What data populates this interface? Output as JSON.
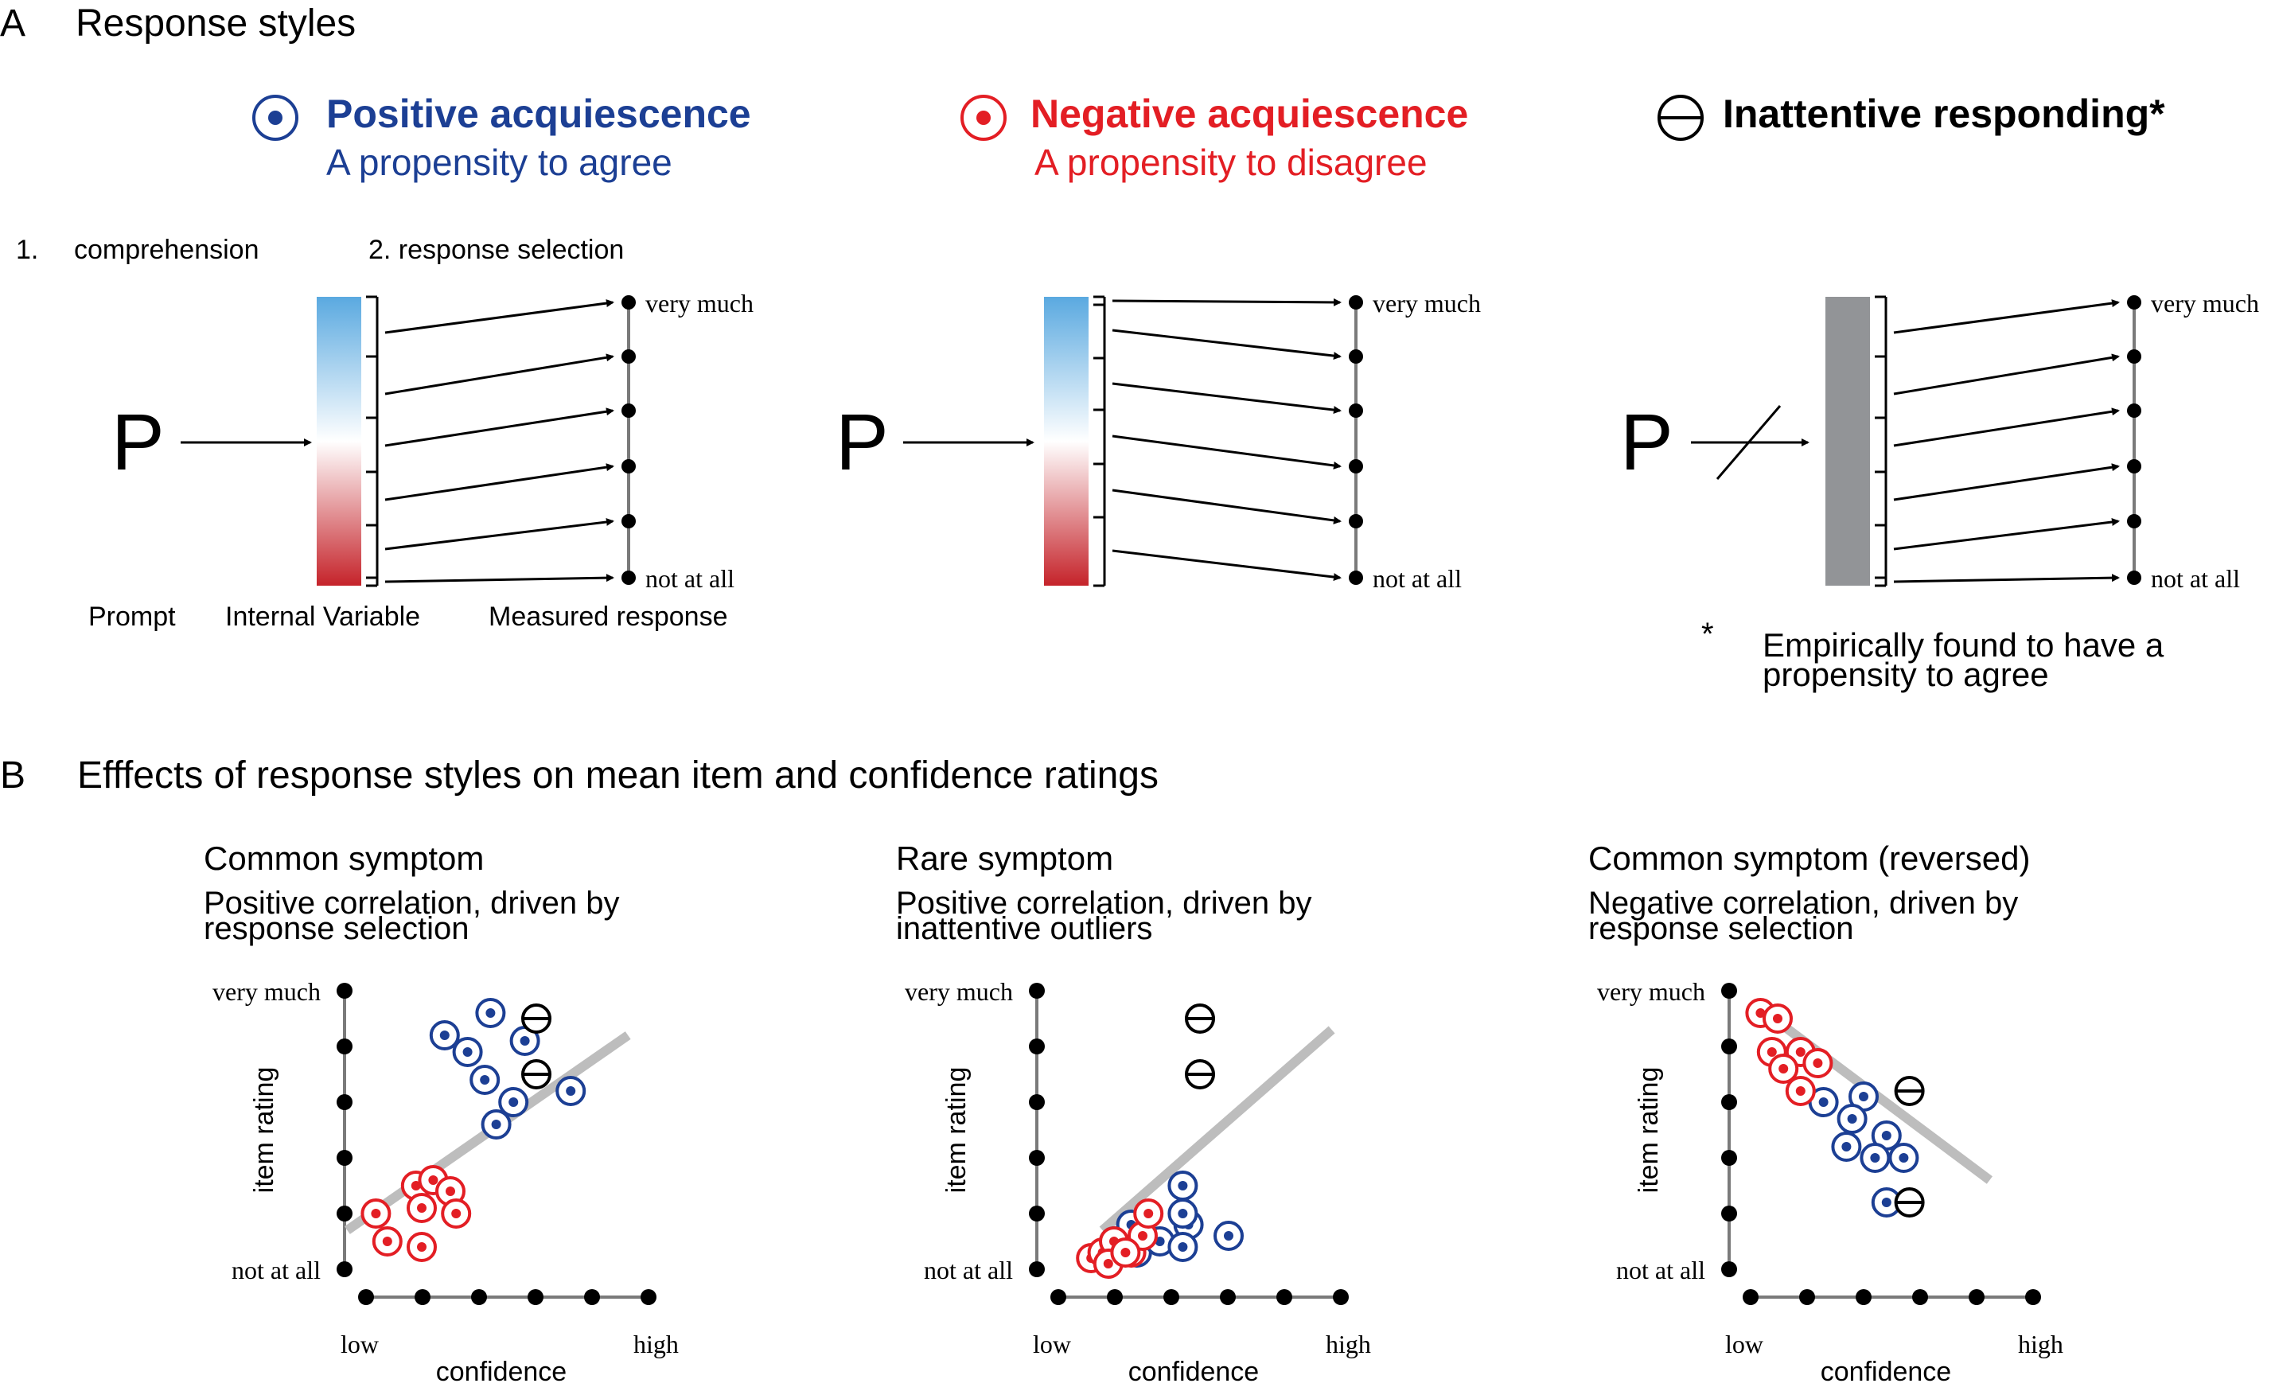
{
  "colors": {
    "positive": "#1c3f94",
    "negative": "#e31e24",
    "neutral": "#000000",
    "axis": "#7a7a7a",
    "fit": "#bdbdbd",
    "gray_bar": "#929497",
    "grad_top": "#5aa9e0",
    "grad_bottom": "#c5232a"
  },
  "panel_a": {
    "letter": "A",
    "title": "Response styles",
    "styles": [
      {
        "icon": "positive-dot-icon",
        "name": "Positive acquiescence",
        "desc": "A propensity to agree"
      },
      {
        "icon": "negative-dot-icon",
        "name": "Negative acquiescence",
        "desc": "A propensity to disagree"
      },
      {
        "icon": "inattentive-bar-icon",
        "name": "Inattentive responding*",
        "desc": ""
      }
    ],
    "step1": "1.",
    "step1_label": "comprehension",
    "step2_label": "2. response selection",
    "prompt_symbol": "P",
    "scale_top": "very much",
    "scale_bottom": "not at all",
    "label_prompt": "Prompt",
    "label_internal": "Internal Variable",
    "label_measured": "Measured response",
    "footnote_star": "*",
    "footnote_line1": "Empirically found to have a",
    "footnote_line2": "propensity to agree"
  },
  "panel_b": {
    "letter": "B",
    "title": "Efffects of response styles on mean item and confidence ratings",
    "ylabel": "item rating",
    "xlabel": "confidence",
    "x_low": "low",
    "x_high": "high",
    "y_top": "very much",
    "y_bottom": "not at all"
  },
  "chart_data": [
    {
      "type": "scatter",
      "title": "Common symptom",
      "subtitle": [
        "Positive correlation, driven by",
        "response selection"
      ],
      "xlabel": "confidence",
      "ylabel": "item rating",
      "xlim": [
        0,
        5
      ],
      "ylim": [
        0,
        5
      ],
      "series": [
        {
          "name": "Positive acquiescence",
          "color": "#1c3f94",
          "points": [
            [
              1.4,
              4.2
            ],
            [
              2.2,
              4.6
            ],
            [
              1.8,
              3.9
            ],
            [
              2.8,
              4.1
            ],
            [
              2.1,
              3.4
            ],
            [
              2.6,
              3.0
            ],
            [
              2.3,
              2.6
            ],
            [
              3.6,
              3.2
            ]
          ]
        },
        {
          "name": "Negative acquiescence",
          "color": "#e31e24",
          "points": [
            [
              0.2,
              1.0
            ],
            [
              0.9,
              1.5
            ],
            [
              1.2,
              1.6
            ],
            [
              1.5,
              1.4
            ],
            [
              1.0,
              1.1
            ],
            [
              1.6,
              1.0
            ],
            [
              0.4,
              0.5
            ],
            [
              1.0,
              0.4
            ]
          ]
        },
        {
          "name": "Inattentive responding",
          "color": "#000000",
          "points": [
            [
              3.0,
              4.5
            ],
            [
              3.0,
              3.5
            ]
          ]
        }
      ],
      "fit_line": [
        [
          -0.3,
          0.7
        ],
        [
          4.6,
          4.2
        ]
      ]
    },
    {
      "type": "scatter",
      "title": "Rare symptom",
      "subtitle": [
        "Positive correlation, driven by",
        "inattentive outliers"
      ],
      "xlabel": "confidence",
      "ylabel": "item rating",
      "xlim": [
        0,
        5
      ],
      "ylim": [
        0,
        5
      ],
      "series": [
        {
          "name": "Positive acquiescence",
          "color": "#1c3f94",
          "points": [
            [
              1.0,
              0.5
            ],
            [
              1.4,
              0.3
            ],
            [
              1.8,
              0.5
            ],
            [
              2.3,
              0.8
            ],
            [
              2.2,
              0.4
            ],
            [
              3.0,
              0.6
            ],
            [
              1.3,
              0.8
            ],
            [
              2.2,
              1.5
            ],
            [
              2.2,
              1.0
            ]
          ]
        },
        {
          "name": "Negative acquiescence",
          "color": "#e31e24",
          "points": [
            [
              0.6,
              0.2
            ],
            [
              0.8,
              0.3
            ],
            [
              1.0,
              0.5
            ],
            [
              0.9,
              0.1
            ],
            [
              1.3,
              0.3
            ],
            [
              1.5,
              0.6
            ],
            [
              1.6,
              1.0
            ],
            [
              1.2,
              0.3
            ]
          ]
        },
        {
          "name": "Inattentive responding",
          "color": "#000000",
          "points": [
            [
              2.5,
              4.5
            ],
            [
              2.5,
              3.5
            ]
          ]
        }
      ],
      "fit_line": [
        [
          0.8,
          0.7
        ],
        [
          4.8,
          4.3
        ]
      ]
    },
    {
      "type": "scatter",
      "title": "Common symptom (reversed)",
      "subtitle": [
        "Negative correlation, driven by",
        "response selection"
      ],
      "xlabel": "confidence",
      "ylabel": "item rating",
      "xlim": [
        0,
        5
      ],
      "ylim": [
        0,
        5
      ],
      "series": [
        {
          "name": "Positive acquiescence",
          "color": "#1c3f94",
          "points": [
            [
              1.3,
              3.0
            ],
            [
              2.0,
              3.1
            ],
            [
              1.8,
              2.7
            ],
            [
              2.4,
              2.4
            ],
            [
              1.7,
              2.2
            ],
            [
              2.2,
              2.0
            ],
            [
              2.7,
              2.0
            ],
            [
              2.4,
              1.2
            ]
          ]
        },
        {
          "name": "Negative acquiescence",
          "color": "#e31e24",
          "points": [
            [
              0.2,
              4.6
            ],
            [
              0.5,
              4.5
            ],
            [
              0.4,
              3.9
            ],
            [
              0.9,
              3.9
            ],
            [
              1.2,
              3.7
            ],
            [
              0.6,
              3.6
            ],
            [
              0.9,
              3.2
            ]
          ]
        },
        {
          "name": "Inattentive responding",
          "color": "#000000",
          "points": [
            [
              2.8,
              3.2
            ],
            [
              2.8,
              1.2
            ]
          ]
        }
      ],
      "fit_line": [
        [
          0.3,
          4.6
        ],
        [
          4.2,
          1.6
        ]
      ]
    }
  ]
}
